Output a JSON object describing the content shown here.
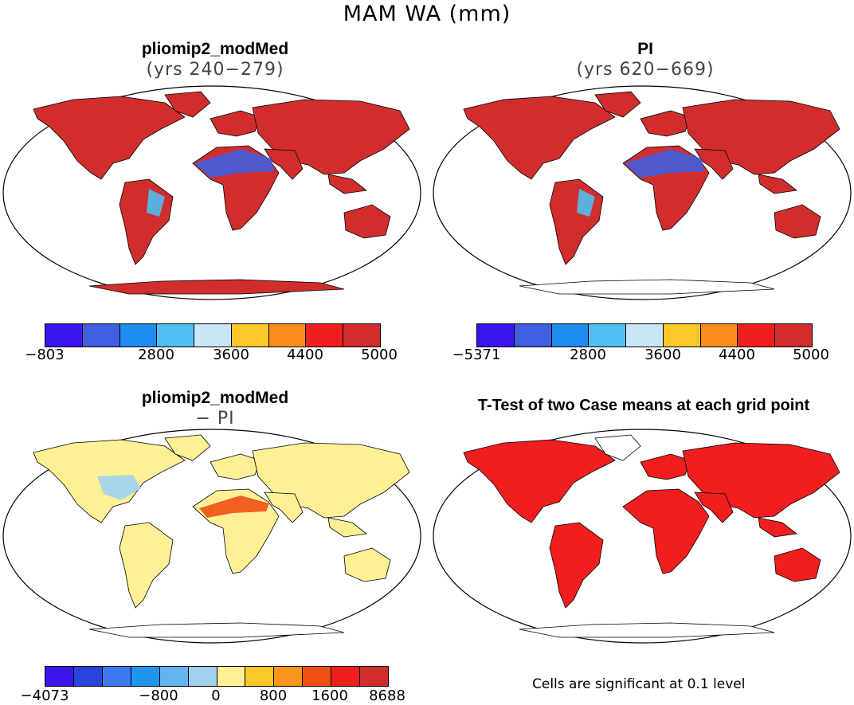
{
  "figure": {
    "title": "MAM WA (mm)"
  },
  "panels": {
    "top_left": {
      "title": "pliomip2_modMed",
      "subtitle": "(yrs 240−279)"
    },
    "top_right": {
      "title": "PI",
      "subtitle": "(yrs 620−669)"
    },
    "bottom_left": {
      "title": "pliomip2_modMed",
      "subtitle": "− PI"
    },
    "bottom_right": {
      "title": "T-Test of two Case means at each grid point"
    }
  },
  "colorbars": {
    "top_left": {
      "colors": [
        "#3c14f0",
        "#3f5ee0",
        "#1e8cf0",
        "#50bef0",
        "#c8e6f5",
        "#fac828",
        "#fa8c1e",
        "#f01e1e",
        "#d22d2d"
      ],
      "labels": [
        "−803",
        "2800",
        "3600",
        "4400",
        "5000"
      ]
    },
    "top_right": {
      "colors": [
        "#3c14f0",
        "#3f5ee0",
        "#1e8cf0",
        "#50bef0",
        "#c8e6f5",
        "#fac828",
        "#fa8c1e",
        "#f01e1e",
        "#d22d2d"
      ],
      "labels": [
        "−5371",
        "2800",
        "3600",
        "4400",
        "5000"
      ]
    },
    "bottom_left": {
      "colors": [
        "#3c14f0",
        "#2846dc",
        "#3c78f0",
        "#1e96f0",
        "#64b4f0",
        "#a0d2f0",
        "#fff096",
        "#fac828",
        "#fa961e",
        "#f05014",
        "#f01e1e",
        "#d22d2d"
      ],
      "labels": [
        "−4073",
        "−800",
        "0",
        "800",
        "1600",
        "8688"
      ]
    }
  },
  "significance_note": "Cells are significant at 0.1 level",
  "map_colors": {
    "land_wet": "#d22d2d",
    "land_dry": "#3f5ee0",
    "land_mid": "#50bef0",
    "diff_base": "#fff096",
    "diff_neg": "#a0d2f0",
    "diff_pos": "#f05014",
    "sig": "#f01e1e"
  }
}
